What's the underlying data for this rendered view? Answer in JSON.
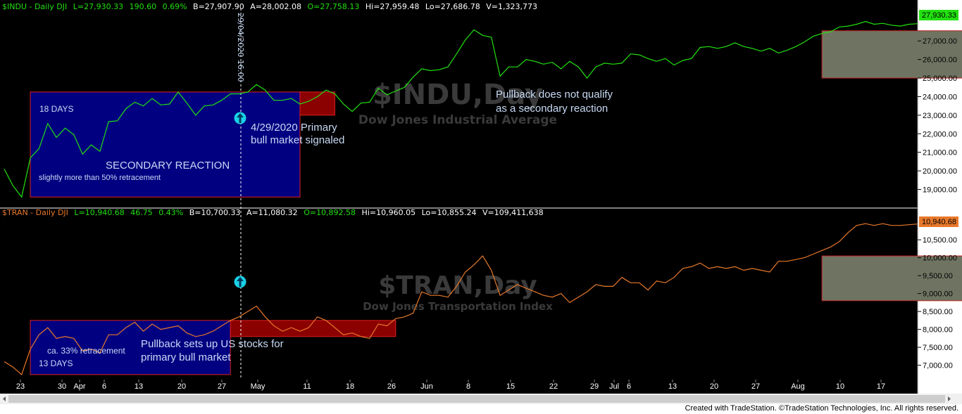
{
  "panels": {
    "top": {
      "header": {
        "symbol": "$INDU - Daily  DJI",
        "last": "L=27,930.33",
        "chg": "190.60",
        "pct": "0.69%",
        "bid": "B=27,907.90",
        "ask": "A=28,002.08",
        "open": "O=27,758.13",
        "hi": "Hi=27,959.48",
        "lo": "Lo=27,686.78",
        "vol": "V=1,323,773"
      },
      "watermark_symbol": "$INDU,Day",
      "watermark_name": "Dow Jones Industrial Average",
      "last_badge": "27,930.33",
      "line_color": "#22e010",
      "y_ticks": [
        "19,000.00",
        "20,000.00",
        "21,000.00",
        "22,000.00",
        "23,000.00",
        "24,000.00",
        "25,000.00",
        "26,000.00",
        "27,000.00"
      ],
      "annotations": {
        "days": "18 DAYS",
        "secondary": "SECONDARY REACTION",
        "retracement": "slightly more than 50% retracement",
        "pullback_line1": "Pullback does not qualify",
        "pullback_line2": "as a secondary reaction",
        "signal_line1": "4/29/2020 Primary",
        "signal_line2": "bull market signaled",
        "cursor_label": "29/04/2020 16:00"
      }
    },
    "bottom": {
      "header": {
        "symbol": "$TRAN - Daily  DJI",
        "last": "L=10,940.68",
        "chg": "46.75",
        "pct": "0.43%",
        "bid": "B=10,700.33",
        "ask": "A=11,080.32",
        "open": "O=10,892.58",
        "hi": "Hi=10,960.05",
        "lo": "Lo=10,855.24",
        "vol": "V=109,411,638"
      },
      "watermark_symbol": "$TRAN,Day",
      "watermark_name": "Dow Jones Transportation Index",
      "last_badge": "10,940.68",
      "line_color": "#e8782a",
      "y_ticks": [
        "7,000.00",
        "7,500.00",
        "8,000.00",
        "8,500.00",
        "9,000.00",
        "9,500.00",
        "10,000.00",
        "10,500.00"
      ],
      "annotations": {
        "retracement": "ca. 33% retracement",
        "days": "13 DAYS",
        "pullback_line1": "Pullback sets up US stocks for",
        "pullback_line2": "primary bull market"
      }
    }
  },
  "x_axis": {
    "labels": [
      "23",
      "30",
      "Apr",
      "6",
      "13",
      "20",
      "27",
      "May",
      "11",
      "18",
      "26",
      "Jun",
      "8",
      "15",
      "22",
      "29",
      "Jul",
      "6",
      "13",
      "20",
      "27",
      "Aug",
      "10",
      "17"
    ]
  },
  "footer": "Created with TradeStation. ©TradeStation Technologies, Inc. All rights reserved.",
  "chart_data": [
    {
      "type": "line",
      "title": "$INDU - Daily",
      "series": [
        {
          "name": "$INDU",
          "values": [
            20100,
            19200,
            18590,
            20700,
            21200,
            22550,
            21800,
            22300,
            21950,
            20900,
            21400,
            21050,
            22650,
            22700,
            23350,
            23700,
            23500,
            23900,
            23550,
            23600,
            24250,
            23650,
            23000,
            23500,
            23550,
            23800,
            24150,
            24150,
            24250,
            24650,
            24350,
            23800,
            23800,
            23900,
            23600,
            23750,
            24000,
            24350,
            24150,
            23600,
            23200,
            23650,
            23700,
            24450,
            24100,
            24300,
            24500,
            25050,
            25500,
            25400,
            25450,
            25600,
            26300,
            27050,
            27600,
            27300,
            27200,
            25100,
            25600,
            25600,
            26000,
            25900,
            25750,
            25850,
            25500,
            25900,
            25600,
            25000,
            25600,
            25800,
            25750,
            25800,
            26300,
            26250,
            26050,
            25900,
            26050,
            25700,
            25950,
            26050,
            26650,
            26700,
            26600,
            26700,
            26900,
            26700,
            26600,
            26450,
            26600,
            26350,
            26500,
            26700,
            26950,
            27250,
            27400,
            27500,
            27750,
            27800,
            27900,
            28050,
            27900,
            27950,
            27850,
            27800,
            27900,
            27930
          ]
        }
      ],
      "ylim": [
        18450,
        28600
      ],
      "shaded_regions": [
        {
          "x": [
            3,
            34
          ],
          "y": [
            18590,
            24250
          ],
          "color": "#000080"
        },
        {
          "x": [
            34,
            38
          ],
          "y": [
            23000,
            24250
          ],
          "color": "#8b0000"
        },
        {
          "x": [
            94,
            124
          ],
          "y": [
            25000,
            27550
          ],
          "color": "#6f7462"
        }
      ],
      "signal_marker": {
        "x": 49,
        "label": "4/29/2020 Primary bull market signaled"
      }
    },
    {
      "type": "line",
      "title": "$TRAN - Daily",
      "series": [
        {
          "name": "$TRAN",
          "values": [
            7100,
            6950,
            6740,
            7450,
            7850,
            8050,
            7750,
            7800,
            7750,
            7400,
            7450,
            7350,
            7850,
            7850,
            8050,
            8200,
            7950,
            8150,
            8000,
            8050,
            8100,
            7900,
            7800,
            7850,
            7950,
            8100,
            8250,
            8350,
            8500,
            8650,
            8350,
            8100,
            7950,
            8050,
            7950,
            8050,
            8350,
            8250,
            8050,
            7850,
            7900,
            7800,
            7750,
            8150,
            8100,
            8300,
            8350,
            8450,
            9050,
            8950,
            8950,
            8900,
            9200,
            9600,
            9800,
            10050,
            9650,
            8950,
            9100,
            9250,
            9150,
            9050,
            8950,
            8900,
            9000,
            8750,
            8900,
            9050,
            9250,
            9200,
            9200,
            9450,
            9300,
            9300,
            9100,
            9350,
            9300,
            9450,
            9700,
            9750,
            9850,
            9700,
            9750,
            9700,
            9750,
            9650,
            9700,
            9650,
            9600,
            9900,
            9900,
            9950,
            10000,
            10100,
            10200,
            10300,
            10450,
            10700,
            10900,
            10950,
            10900,
            10950,
            10900,
            10900,
            10920,
            10940
          ]
        }
      ],
      "ylim": [
        6600,
        11150
      ],
      "shaded_regions": [
        {
          "x": [
            3,
            26
          ],
          "y": [
            6740,
            8250
          ],
          "color": "#000080"
        },
        {
          "x": [
            26,
            45
          ],
          "y": [
            7800,
            8250
          ],
          "color": "#8b0000"
        },
        {
          "x": [
            94,
            124
          ],
          "y": [
            8800,
            10050
          ],
          "color": "#6f7462"
        }
      ],
      "signal_marker": {
        "x": 49
      }
    }
  ]
}
